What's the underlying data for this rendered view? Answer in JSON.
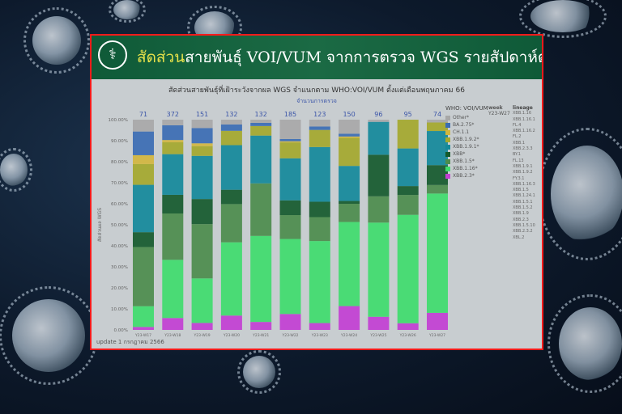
{
  "header": {
    "title_highlight": "สัดส่วน",
    "title_rest": "สายพันธุ์ VOI/VUM จากการตรวจ WGS รายสัปดาห์ตั้งแต่ พฤษภาคม"
  },
  "footer": {
    "update": "update 1 กรกฎาคม 2566"
  },
  "legend_extra": {
    "week_header": "week",
    "week_value": "Y23-W27",
    "lineage_header": "lineage",
    "lineages": [
      "XBB.1.16",
      "XBB.1.16.1",
      "FL.4",
      "XBB.1.16.2",
      "FL.2",
      "XBB.1",
      "XBB.2.3.3",
      "BY.1",
      "FL.13",
      "XBB.1.9.1",
      "XBB.1.9.2",
      "FY.3.1",
      "XBB.1.16.3",
      "XBB.1.5",
      "XBB.1.24.1",
      "XBB.1.5.1",
      "XBB.1.5.2",
      "XBB.1.9",
      "XBB.2.3",
      "XBB.1.5.10",
      "XBB.2.3.2",
      "XBL.2"
    ]
  },
  "colors": {
    "frame_border": "#ff1a1a",
    "header_bg": "#1b6a44",
    "title_highlight": "#e8e24a",
    "count_text": "#3b55a8"
  },
  "chart_data": {
    "type": "bar",
    "stacked": true,
    "normalized": true,
    "title": "สัดส่วนสายพันธุ์ที่เฝ้าระวังจากผล WGS จำแนกตาม WHO:VOI/VUM  ตั้งแต่เดือนพฤษภาคม 66",
    "counts_label": "จำนวนการตรวจ",
    "ylabel": "สัดส่วนผล WGS",
    "ylim": [
      0,
      100
    ],
    "yticks": [
      "0.00%",
      "10.00%",
      "20.00%",
      "30.00%",
      "40.00%",
      "50.00%",
      "60.00%",
      "70.00%",
      "80.00%",
      "90.00%",
      "100.00%"
    ],
    "legend_title": "WHO: VOI/VUM",
    "legend_position": "right",
    "categories": [
      "Y23-W17",
      "Y23-W18",
      "Y23-W19",
      "Y23-W20",
      "Y23-W21",
      "Y23-W22",
      "Y23-W23",
      "Y23-W24",
      "Y23-W25",
      "Y23-W26",
      "Y23-W27"
    ],
    "counts": [
      71,
      372,
      151,
      132,
      132,
      185,
      123,
      150,
      96,
      95,
      74
    ],
    "series": [
      {
        "name": "XBB.2.3*",
        "color": "#c23fd2",
        "values": [
          1.41,
          5.65,
          3.31,
          6.82,
          3.79,
          7.57,
          3.25,
          11.33,
          6.25,
          3.16,
          8.11
        ]
      },
      {
        "name": "XBB.1.16*",
        "color": "#3fdc6c",
        "values": [
          9.86,
          27.69,
          21.19,
          34.85,
          40.91,
          35.68,
          39.02,
          40.0,
          44.79,
          51.58,
          56.76
        ]
      },
      {
        "name": "XBB.1.5*",
        "color": "#4c8c4c",
        "values": [
          28.17,
          22.04,
          25.83,
          18.18,
          25.0,
          11.35,
          11.38,
          8.67,
          12.5,
          9.47,
          4.05
        ]
      },
      {
        "name": "XBB*",
        "color": "#155a2c",
        "values": [
          7.04,
          8.87,
          11.92,
          6.82,
          0,
          7.03,
          7.32,
          1.33,
          19.79,
          4.21,
          9.46
        ]
      },
      {
        "name": "XBB.1.9.1*",
        "color": "#14899a",
        "values": [
          22.54,
          19.35,
          20.53,
          21.21,
          22.73,
          19.99,
          26.02,
          16.67,
          15.63,
          17.89,
          16.22
        ]
      },
      {
        "name": "XBB.1.9.2*",
        "color": "#a4a82c",
        "values": [
          9.86,
          5.65,
          4.64,
          6.82,
          4.55,
          7.57,
          8.13,
          13.33,
          0,
          13.68,
          4.05
        ]
      },
      {
        "name": "CH.1.1",
        "color": "#d2b63e",
        "values": [
          4.23,
          1.08,
          1.33,
          0,
          0,
          0.54,
          0,
          0.67,
          0,
          0,
          0
        ]
      },
      {
        "name": "BA.2.75*",
        "color": "#3b6db3",
        "values": [
          11.27,
          6.99,
          7.28,
          3.03,
          1.52,
          1.08,
          1.63,
          1.33,
          0,
          0,
          0
        ]
      },
      {
        "name": "Other*",
        "color": "#a8a8a8",
        "values": [
          5.63,
          2.68,
          3.97,
          2.27,
          1.5,
          9.19,
          3.25,
          6.67,
          1.04,
          0.01,
          1.35
        ]
      }
    ]
  }
}
